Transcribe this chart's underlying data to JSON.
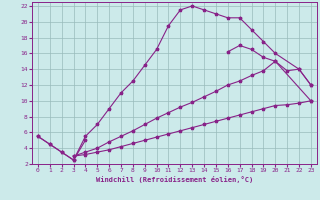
{
  "xlabel": "Windchill (Refroidissement éolien,°C)",
  "background_color": "#cceaea",
  "grid_color": "#99bbbb",
  "line_color": "#882288",
  "xlim": [
    -0.5,
    23.5
  ],
  "ylim": [
    2,
    22.5
  ],
  "xticks": [
    0,
    1,
    2,
    3,
    4,
    5,
    6,
    7,
    8,
    9,
    10,
    11,
    12,
    13,
    14,
    15,
    16,
    17,
    18,
    19,
    20,
    21,
    22,
    23
  ],
  "yticks": [
    2,
    4,
    6,
    8,
    10,
    12,
    14,
    16,
    18,
    20,
    22
  ],
  "curve1_x": [
    0,
    1,
    2,
    3,
    4,
    5,
    6,
    7,
    8,
    9,
    10,
    11,
    12,
    13,
    14,
    15,
    16,
    17,
    18,
    19,
    20,
    22,
    23
  ],
  "curve1_y": [
    5.5,
    4.5,
    3.5,
    2.5,
    5.5,
    7.0,
    9.0,
    11.0,
    12.5,
    14.5,
    16.5,
    19.5,
    21.5,
    22.0,
    21.5,
    21.0,
    20.5,
    20.5,
    19.0,
    17.5,
    16.0,
    14.0,
    12.0
  ],
  "curve2_x": [
    0,
    1,
    2,
    3,
    4,
    16,
    17,
    18,
    19,
    20,
    21,
    22,
    23
  ],
  "curve2_y": [
    5.5,
    4.5,
    3.5,
    2.5,
    5.0,
    16.2,
    17.0,
    16.5,
    15.5,
    15.0,
    13.8,
    14.0,
    12.0
  ],
  "curve3_x": [
    3,
    4,
    5,
    6,
    7,
    8,
    9,
    10,
    11,
    12,
    13,
    14,
    15,
    16,
    17,
    18,
    19,
    20,
    23
  ],
  "curve3_y": [
    3.0,
    3.5,
    4.0,
    4.8,
    5.5,
    6.2,
    7.0,
    7.8,
    8.5,
    9.2,
    9.8,
    10.5,
    11.2,
    12.0,
    12.5,
    13.2,
    13.8,
    15.0,
    10.0
  ],
  "curve4_x": [
    3,
    4,
    5,
    6,
    7,
    8,
    9,
    10,
    11,
    12,
    13,
    14,
    15,
    16,
    17,
    18,
    19,
    20,
    21,
    22,
    23
  ],
  "curve4_y": [
    3.0,
    3.2,
    3.5,
    3.8,
    4.2,
    4.6,
    5.0,
    5.4,
    5.8,
    6.2,
    6.6,
    7.0,
    7.4,
    7.8,
    8.2,
    8.6,
    9.0,
    9.4,
    9.5,
    9.7,
    10.0
  ]
}
